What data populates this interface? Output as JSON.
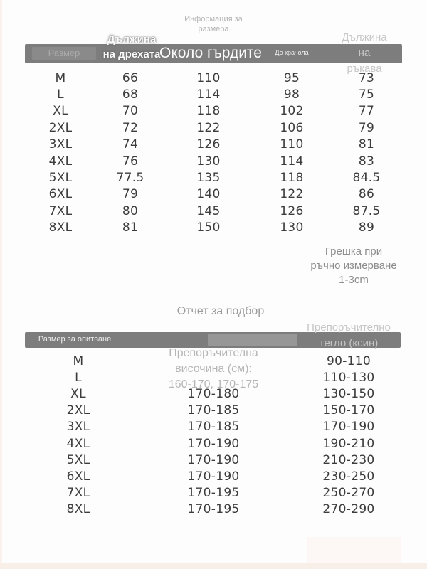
{
  "colors": {
    "bar_bg": "#7d7d7d",
    "table_text": "#3c3c3c",
    "overlay_light_gray": "#c6c6c6",
    "note_gray": "#8d8d8d",
    "bottom_strip": "#f8efe9"
  },
  "size_info": {
    "title_lines": [
      "Информация за",
      "размера"
    ],
    "header": {
      "size": "Размер",
      "garment_length_lines": [
        "Дължина",
        "на дрехата"
      ],
      "chest": "Около гърдите",
      "inseam": "До крачола",
      "sleeve_lines": [
        "Дължина",
        "на",
        "ръкава"
      ]
    },
    "rows": [
      {
        "size": "M",
        "length": "66",
        "chest": "110",
        "inseam": "95",
        "sleeve": "73"
      },
      {
        "size": "L",
        "length": "68",
        "chest": "114",
        "inseam": "98",
        "sleeve": "75"
      },
      {
        "size": "XL",
        "length": "70",
        "chest": "118",
        "inseam": "102",
        "sleeve": "77"
      },
      {
        "size": "2XL",
        "length": "72",
        "chest": "122",
        "inseam": "106",
        "sleeve": "79"
      },
      {
        "size": "3XL",
        "length": "74",
        "chest": "126",
        "inseam": "110",
        "sleeve": "81"
      },
      {
        "size": "4XL",
        "length": "76",
        "chest": "130",
        "inseam": "114",
        "sleeve": "83"
      },
      {
        "size": "5XL",
        "length": "77.5",
        "chest": "135",
        "inseam": "118",
        "sleeve": "84.5"
      },
      {
        "size": "6XL",
        "length": "79",
        "chest": "140",
        "inseam": "122",
        "sleeve": "86"
      },
      {
        "size": "7XL",
        "length": "80",
        "chest": "145",
        "inseam": "126",
        "sleeve": "87.5"
      },
      {
        "size": "8XL",
        "length": "81",
        "chest": "150",
        "inseam": "130",
        "sleeve": "89"
      }
    ],
    "note_lines": [
      "Грешка при",
      "ръчно измерване",
      "1-3cm"
    ]
  },
  "fit_report": {
    "title": "Отчет за подбор",
    "header": {
      "size": "Размер за опитване",
      "height_lines": [
        "Препоръчителна",
        "височина (см):",
        "160-170, 170-175"
      ],
      "weight_lines": [
        "Препоръчително",
        "тегло (ксин)"
      ]
    },
    "rows": [
      {
        "size": "M",
        "height": "",
        "weight": "90-110"
      },
      {
        "size": "L",
        "height": "",
        "weight": "110-130"
      },
      {
        "size": "XL",
        "height": "170-180",
        "weight": "130-150"
      },
      {
        "size": "2XL",
        "height": "170-185",
        "weight": "150-170"
      },
      {
        "size": "3XL",
        "height": "170-185",
        "weight": "170-190"
      },
      {
        "size": "4XL",
        "height": "170-190",
        "weight": "190-210"
      },
      {
        "size": "5XL",
        "height": "170-190",
        "weight": "210-230"
      },
      {
        "size": "6XL",
        "height": "170-190",
        "weight": "230-250"
      },
      {
        "size": "7XL",
        "height": "170-195",
        "weight": "250-270"
      },
      {
        "size": "8XL",
        "height": "170-195",
        "weight": "270-290"
      }
    ]
  }
}
